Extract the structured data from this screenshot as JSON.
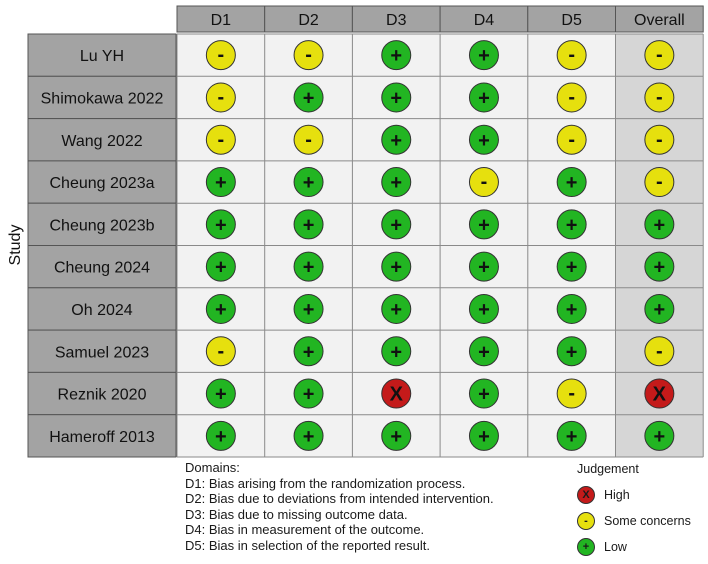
{
  "y_axis_label": "Study",
  "columns": [
    "D1",
    "D2",
    "D3",
    "D4",
    "D5",
    "Overall"
  ],
  "studies": [
    {
      "name": "Lu YH",
      "judgements": [
        "some",
        "some",
        "low",
        "low",
        "some",
        "some"
      ]
    },
    {
      "name": "Shimokawa 2022",
      "judgements": [
        "some",
        "low",
        "low",
        "low",
        "some",
        "some"
      ]
    },
    {
      "name": "Wang 2022",
      "judgements": [
        "some",
        "some",
        "low",
        "low",
        "some",
        "some"
      ]
    },
    {
      "name": "Cheung 2023a",
      "judgements": [
        "low",
        "low",
        "low",
        "some",
        "low",
        "some"
      ]
    },
    {
      "name": "Cheung 2023b",
      "judgements": [
        "low",
        "low",
        "low",
        "low",
        "low",
        "low"
      ]
    },
    {
      "name": "Cheung 2024",
      "judgements": [
        "low",
        "low",
        "low",
        "low",
        "low",
        "low"
      ]
    },
    {
      "name": "Oh 2024",
      "judgements": [
        "low",
        "low",
        "low",
        "low",
        "low",
        "low"
      ]
    },
    {
      "name": "Samuel 2023",
      "judgements": [
        "some",
        "low",
        "low",
        "low",
        "low",
        "some"
      ]
    },
    {
      "name": "Reznik 2020",
      "judgements": [
        "low",
        "low",
        "high",
        "low",
        "some",
        "high"
      ]
    },
    {
      "name": "Hameroff 2013",
      "judgements": [
        "low",
        "low",
        "low",
        "low",
        "low",
        "low"
      ]
    }
  ],
  "judgement_styles": {
    "low": {
      "color": "#22b522",
      "symbol": "+"
    },
    "some": {
      "color": "#e6e00e",
      "symbol": "-"
    },
    "high": {
      "color": "#c41a1a",
      "symbol": "X"
    }
  },
  "colors": {
    "header_bg": "#a3a3a3",
    "study_bg": "#a3a3a3",
    "cell_bg": "#f2f2f2",
    "overall_bg": "#d6d6d6",
    "grid_line": "#8a8a8a"
  },
  "domains": {
    "title": "Domains:",
    "items": [
      "D1: Bias arising from the randomization process.",
      "D2: Bias due to deviations from intended intervention.",
      "D3: Bias due to missing outcome data.",
      "D4: Bias in measurement of the outcome.",
      "D5: Bias in selection of the reported result."
    ]
  },
  "legend": {
    "title": "Judgement",
    "items": [
      {
        "key": "high",
        "label": "High"
      },
      {
        "key": "some",
        "label": "Some concerns"
      },
      {
        "key": "low",
        "label": "Low"
      }
    ]
  }
}
